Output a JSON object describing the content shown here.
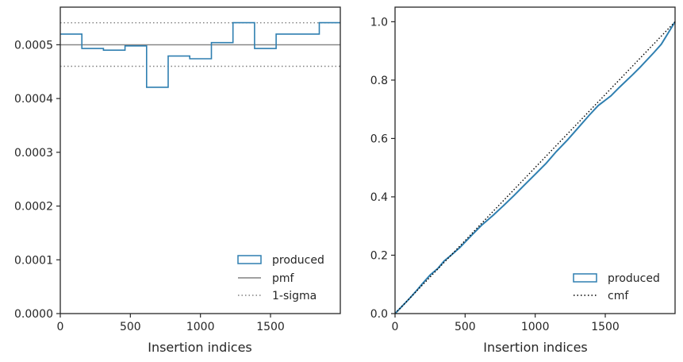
{
  "colors": {
    "produced": "#2f7fb0",
    "pmf": "#808080",
    "sigma": "#808080",
    "cmf": "#000000",
    "axes": "#262626"
  },
  "chart_data": [
    {
      "type": "histogram",
      "xlabel": "Insertion indices",
      "ylabel": "",
      "xlim": [
        0,
        1998
      ],
      "ylim": [
        0,
        0.00057
      ],
      "xticks": [
        0,
        500,
        1000,
        1500
      ],
      "yticks": [
        0,
        0.0001,
        0.0002,
        0.0003,
        0.0004,
        0.0005
      ],
      "ytick_labels": [
        "0.0000",
        "0.0001",
        "0.0002",
        "0.0003",
        "0.0004",
        "0.0005"
      ],
      "xtick_labels": [
        "0",
        "500",
        "1000",
        "1500"
      ],
      "bin_edges": [
        0,
        154,
        308,
        462,
        616,
        770,
        924,
        1078,
        1232,
        1386,
        1540,
        1694,
        1848,
        1998
      ],
      "produced": [
        0.00052,
        0.000493,
        0.00049,
        0.000498,
        0.000421,
        0.000479,
        0.000474,
        0.000504,
        0.000541,
        0.000493,
        0.00052,
        0.00052,
        0.000541
      ],
      "pmf": 0.0005,
      "sigma_lower": 0.00046,
      "sigma_upper": 0.000541,
      "legend": [
        "produced",
        "pmf",
        "1-sigma"
      ],
      "legend_position": "lower-right"
    },
    {
      "type": "line",
      "xlabel": "Insertion indices",
      "ylabel": "",
      "xlim": [
        0,
        1998
      ],
      "ylim": [
        0,
        1.05
      ],
      "xticks": [
        0,
        500,
        1000,
        1500
      ],
      "yticks": [
        0,
        0.2,
        0.4,
        0.6,
        0.8,
        1.0
      ],
      "ytick_labels": [
        "0.0",
        "0.2",
        "0.4",
        "0.6",
        "0.8",
        "1.0"
      ],
      "xtick_labels": [
        "0",
        "500",
        "1000",
        "1500"
      ],
      "produced": {
        "x": [
          0,
          100,
          154,
          200,
          250,
          308,
          350,
          400,
          462,
          500,
          550,
          616,
          700,
          770,
          850,
          924,
          1000,
          1078,
          1150,
          1232,
          1300,
          1386,
          1450,
          1540,
          1600,
          1694,
          1750,
          1848,
          1900,
          1998
        ],
        "y": [
          0,
          0.05,
          0.079,
          0.105,
          0.132,
          0.156,
          0.18,
          0.2,
          0.226,
          0.245,
          0.27,
          0.302,
          0.337,
          0.368,
          0.405,
          0.441,
          0.477,
          0.515,
          0.555,
          0.596,
          0.633,
          0.68,
          0.713,
          0.746,
          0.775,
          0.818,
          0.845,
          0.895,
          0.923,
          1.0
        ]
      },
      "cmf": {
        "x": [
          0,
          1998
        ],
        "y": [
          0,
          1.0
        ]
      },
      "legend": [
        "produced",
        "cmf"
      ],
      "legend_position": "lower-right"
    }
  ]
}
